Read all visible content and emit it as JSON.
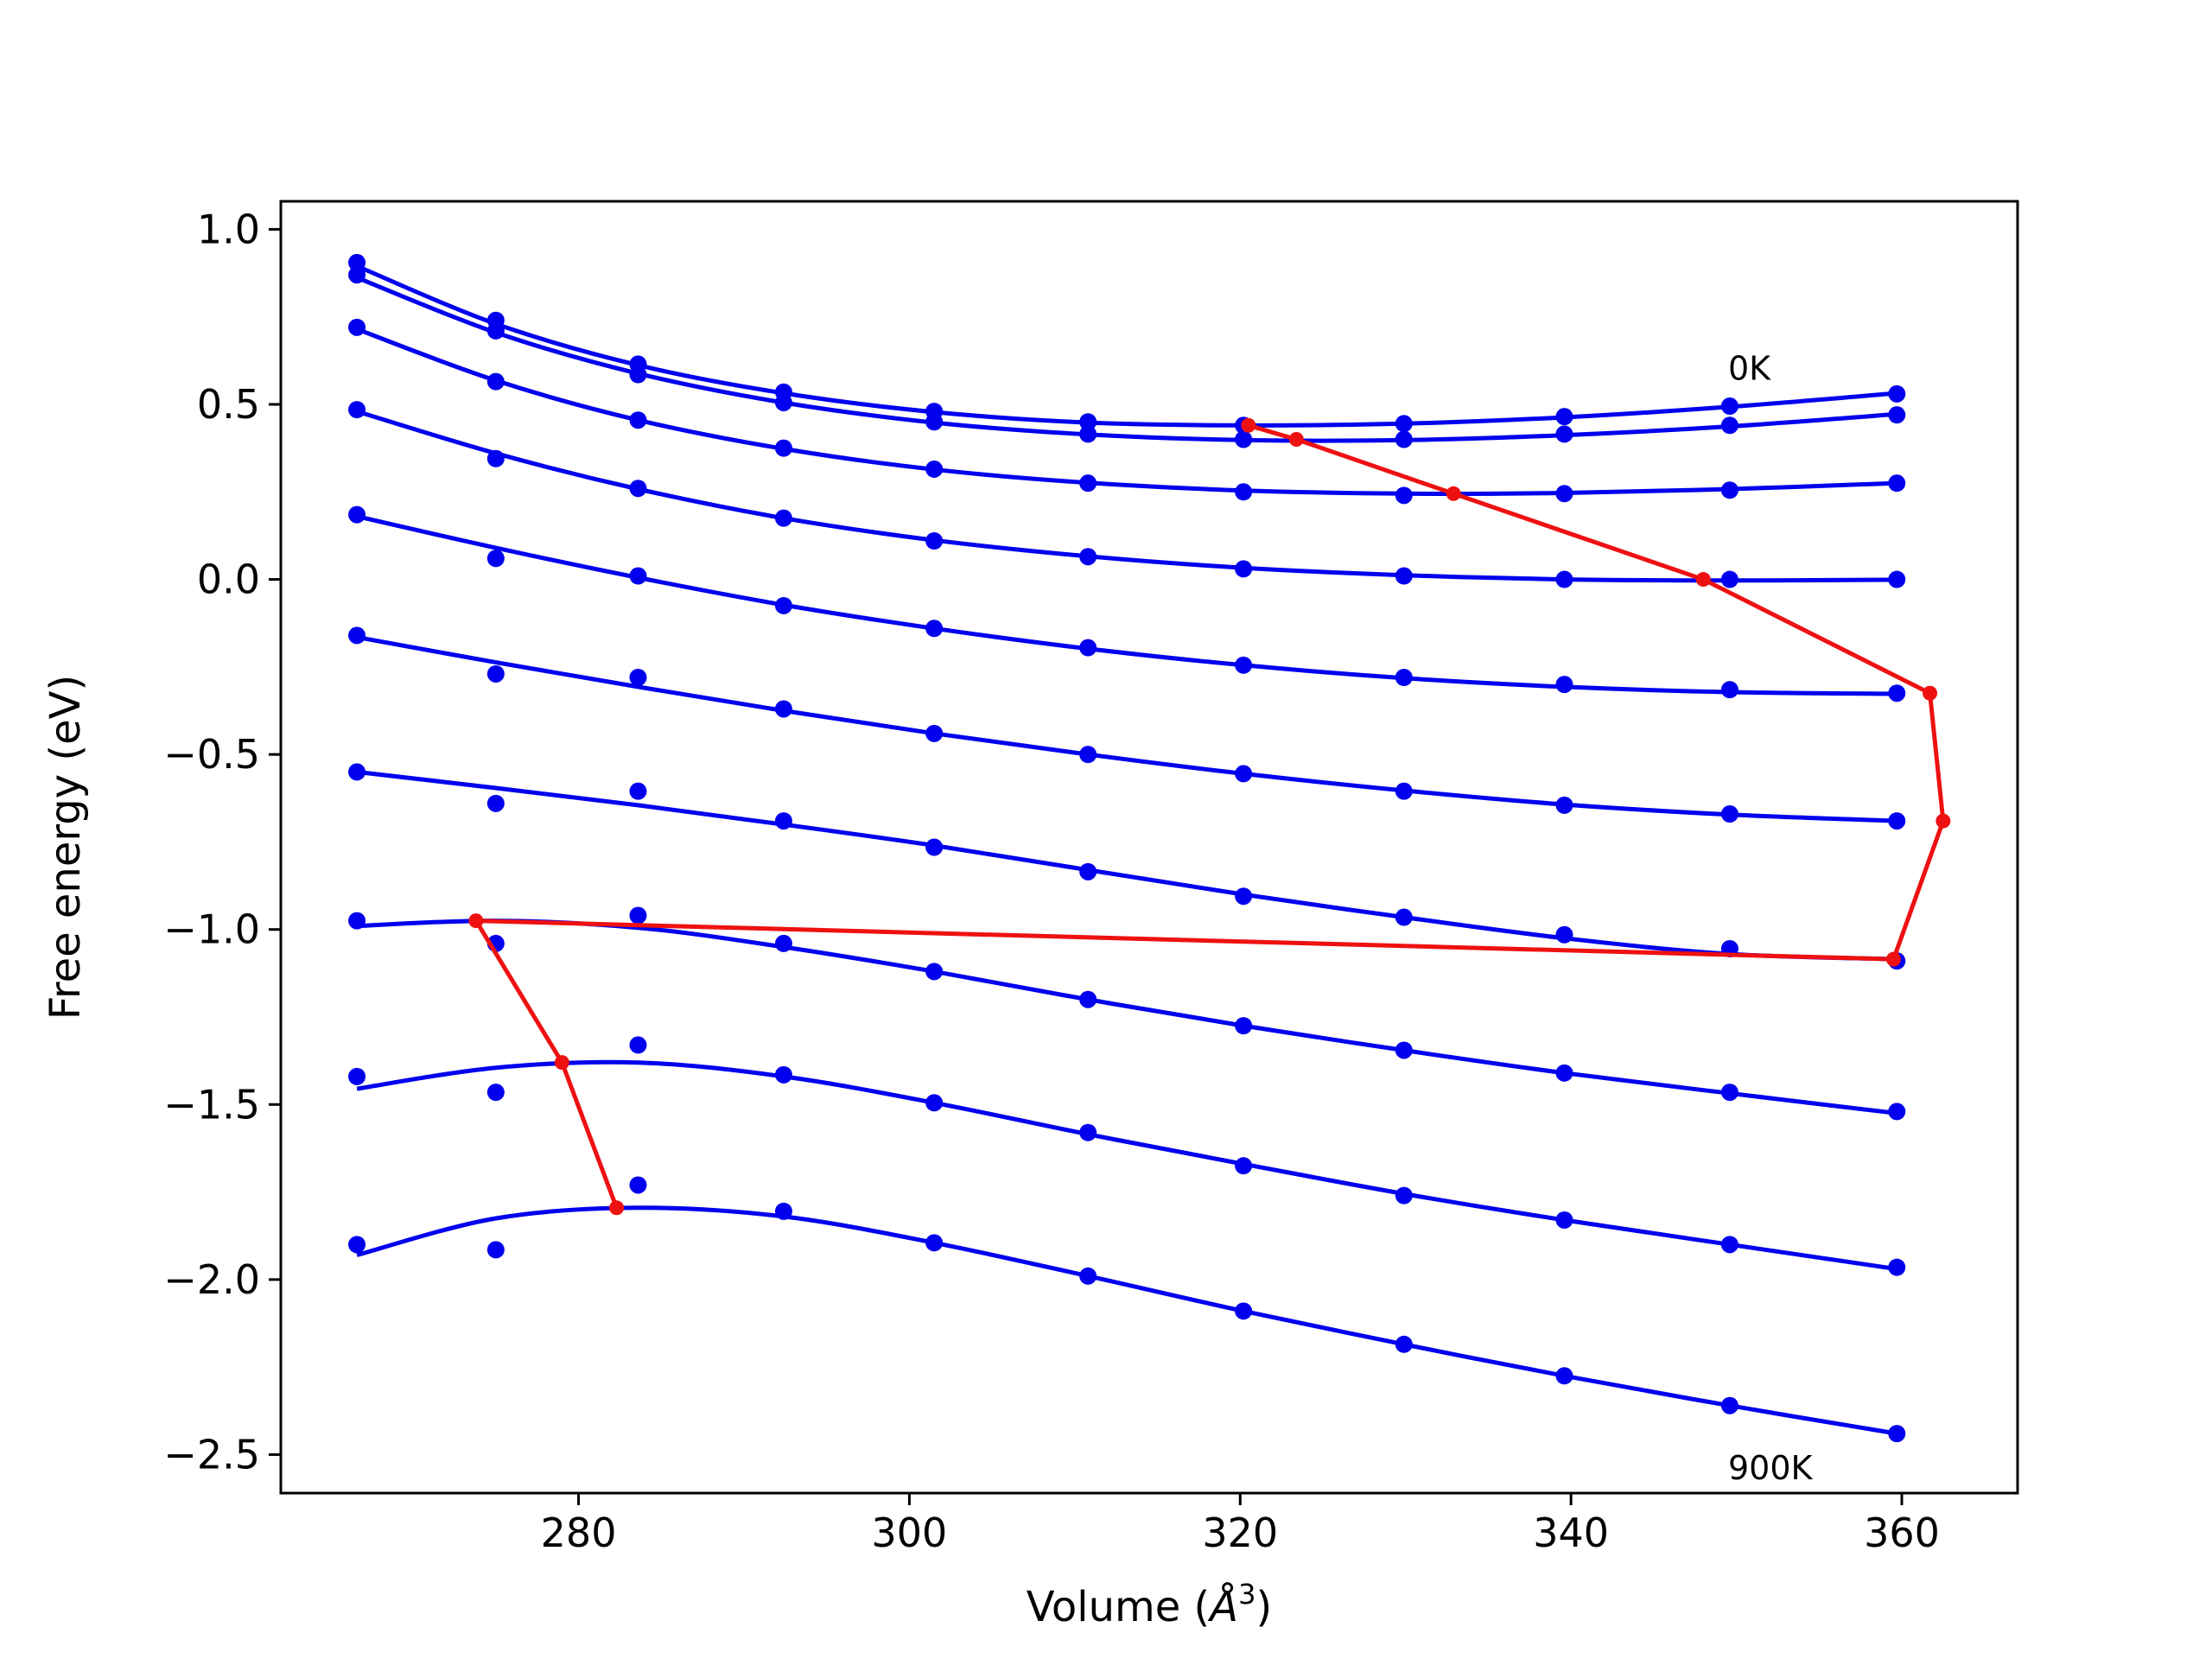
{
  "chart_data": {
    "type": "line",
    "title": "",
    "xlabel": "Volume (",
    "xlabel_unit": "Å",
    "xlabel_exp": "3",
    "xlabel_close": ")",
    "ylabel": "Free energy (eV)",
    "xlim": [
      262,
      367
    ],
    "ylim": [
      -2.61,
      1.08
    ],
    "xticks": [
      280,
      300,
      320,
      340,
      360
    ],
    "yticks": [
      1.0,
      0.5,
      0.0,
      -0.5,
      -1.0,
      -1.5,
      -2.0,
      -2.5
    ],
    "xtick_labels": [
      "280",
      "300",
      "320",
      "340",
      "360"
    ],
    "ytick_labels": [
      "1.0",
      "0.5",
      "0.0",
      "−0.5",
      "−1.0",
      "−1.5",
      "−2.0",
      "−2.5"
    ],
    "grid": false,
    "colors": {
      "fit": "#0000ee",
      "points": "#0000ee",
      "equilibrium": "#ee1111"
    },
    "annotations": [
      {
        "text": "0K",
        "x": 349.5,
        "y": 0.57
      },
      {
        "text": "900K",
        "x": 349.5,
        "y": -2.57
      }
    ],
    "x": [
      266.6,
      275.0,
      283.6,
      292.4,
      301.5,
      310.8,
      320.2,
      329.9,
      339.6,
      349.6,
      359.7
    ],
    "series": [
      {
        "points": [
          0.905,
          0.74,
          0.615,
          0.535,
          0.48,
          0.45,
          0.44,
          0.445,
          0.465,
          0.495,
          0.53
        ],
        "fit": [
          0.895,
          0.73,
          0.612,
          0.532,
          0.478,
          0.448,
          0.44,
          0.445,
          0.463,
          0.493,
          0.532
        ]
      },
      {
        "points": [
          0.87,
          0.71,
          0.585,
          0.505,
          0.45,
          0.415,
          0.4,
          0.4,
          0.415,
          0.44,
          0.47
        ],
        "fit": [
          0.862,
          0.705,
          0.588,
          0.505,
          0.448,
          0.414,
          0.398,
          0.398,
          0.412,
          0.437,
          0.472
        ]
      },
      {
        "points": [
          0.72,
          0.565,
          0.455,
          0.375,
          0.315,
          0.275,
          0.25,
          0.24,
          0.245,
          0.255,
          0.275
        ],
        "fit": [
          0.715,
          0.568,
          0.455,
          0.373,
          0.314,
          0.276,
          0.254,
          0.245,
          0.247,
          0.258,
          0.275
        ]
      },
      {
        "points": [
          0.485,
          0.345,
          0.26,
          0.175,
          0.11,
          0.065,
          0.03,
          0.01,
          -0.0,
          -0.0,
          0.0
        ],
        "fit": [
          0.48,
          0.36,
          0.258,
          0.175,
          0.112,
          0.066,
          0.033,
          0.012,
          0.0,
          -0.003,
          -0.001
        ]
      },
      {
        "points": [
          0.185,
          0.06,
          0.01,
          -0.075,
          -0.14,
          -0.195,
          -0.245,
          -0.28,
          -0.3,
          -0.315,
          -0.325
        ],
        "fit": [
          0.18,
          0.09,
          0.005,
          -0.073,
          -0.14,
          -0.198,
          -0.245,
          -0.282,
          -0.307,
          -0.322,
          -0.327
        ]
      },
      {
        "points": [
          -0.16,
          -0.27,
          -0.28,
          -0.37,
          -0.44,
          -0.5,
          -0.555,
          -0.605,
          -0.645,
          -0.67,
          -0.69
        ],
        "fit": [
          -0.165,
          -0.237,
          -0.307,
          -0.375,
          -0.44,
          -0.5,
          -0.555,
          -0.603,
          -0.643,
          -0.672,
          -0.69
        ]
      },
      {
        "points": [
          -0.55,
          -0.64,
          -0.605,
          -0.69,
          -0.765,
          -0.835,
          -0.905,
          -0.965,
          -1.015,
          -1.055,
          -1.09
        ],
        "fit": [
          -0.55,
          -0.596,
          -0.645,
          -0.7,
          -0.76,
          -0.83,
          -0.9,
          -0.965,
          -1.025,
          -1.07,
          -1.085
        ]
      },
      {
        "points": [
          -0.975,
          -1.04,
          -0.96,
          -1.04,
          -1.12,
          -1.2,
          -1.275,
          -1.345,
          -1.41,
          -1.465,
          -1.52
        ],
        "fit": [
          -0.99,
          -0.975,
          -0.995,
          -1.05,
          -1.12,
          -1.2,
          -1.275,
          -1.345,
          -1.41,
          -1.468,
          -1.525
        ]
      },
      {
        "points": [
          -1.42,
          -1.465,
          -1.33,
          -1.415,
          -1.495,
          -1.58,
          -1.675,
          -1.76,
          -1.83,
          -1.9,
          -1.965
        ],
        "fit": [
          -1.455,
          -1.395,
          -1.38,
          -1.42,
          -1.495,
          -1.585,
          -1.67,
          -1.755,
          -1.83,
          -1.9,
          -1.97
        ]
      },
      {
        "points": [
          -1.9,
          -1.915,
          -1.73,
          -1.805,
          -1.895,
          -1.99,
          -2.09,
          -2.185,
          -2.275,
          -2.36,
          -2.44
        ],
        "fit": [
          -1.93,
          -1.825,
          -1.795,
          -1.82,
          -1.895,
          -1.99,
          -2.09,
          -2.185,
          -2.275,
          -2.36,
          -2.44
        ]
      }
    ],
    "equilibrium": {
      "x": [
        320.5,
        323.4,
        332.9,
        348.0,
        361.7,
        362.5,
        359.5,
        273.8,
        279.0,
        282.3
      ],
      "y": [
        0.44,
        0.4,
        0.245,
        0.0,
        -0.325,
        -0.69,
        -1.085,
        -0.975,
        -1.38,
        -1.795
      ]
    }
  }
}
